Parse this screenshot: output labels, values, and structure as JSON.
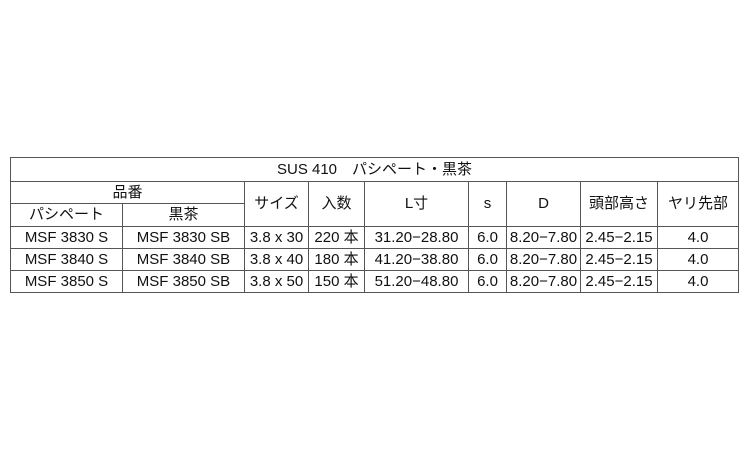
{
  "title": "SUS 410　パシペート・黒茶",
  "headers": {
    "part_number": "品番",
    "passivate": "パシペート",
    "black_brown": "黒茶",
    "size": "サイズ",
    "quantity": "入数",
    "length": "L寸",
    "s": "s",
    "d": "D",
    "head_height": "頭部高さ",
    "drill_tip": "ヤリ先部"
  },
  "rows": [
    {
      "passivate": "MSF 3830 S",
      "black_brown": "MSF 3830 SB",
      "size": "3.8 x 30",
      "quantity": "220 本",
      "length": "31.20−28.80",
      "s": "6.0",
      "d": "8.20−7.80",
      "head_height": "2.45−2.15",
      "drill_tip": "4.0"
    },
    {
      "passivate": "MSF 3840 S",
      "black_brown": "MSF 3840 SB",
      "size": "3.8 x 40",
      "quantity": "180 本",
      "length": "41.20−38.80",
      "s": "6.0",
      "d": "8.20−7.80",
      "head_height": "2.45−2.15",
      "drill_tip": "4.0"
    },
    {
      "passivate": "MSF 3850 S",
      "black_brown": "MSF 3850 SB",
      "size": "3.8 x 50",
      "quantity": "150 本",
      "length": "51.20−48.80",
      "s": "6.0",
      "d": "8.20−7.80",
      "head_height": "2.45−2.15",
      "drill_tip": "4.0"
    }
  ]
}
